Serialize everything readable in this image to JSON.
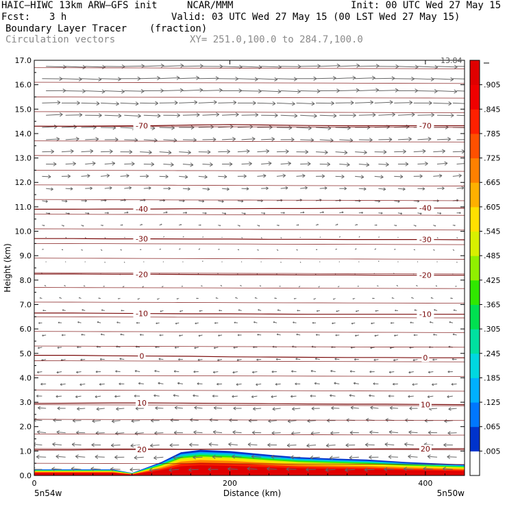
{
  "header": {
    "model": "HAIC–HIWC 13km ARW–GFS init",
    "org": "NCAR/MMM",
    "init": "Init: 00 UTC Wed 27 May 15",
    "fcst_label": "Fcst:",
    "fcst_value": "3 h",
    "valid": "Valid: 03 UTC Wed 27 May 15 (00 LST Wed 27 May 15)",
    "field": "Boundary Layer Tracer",
    "field_units": "(fraction)",
    "vectors": "Circulation vectors",
    "xy": "XY= 251.0,100.0 to 284.7,100.0"
  },
  "chart_data": {
    "type": "heatmap",
    "title": "Boundary Layer Tracer",
    "units": "(fraction)",
    "xlabel": "Distance (km)",
    "ylabel": "Height (km)",
    "xlim": [
      0,
      440
    ],
    "ylim": [
      0,
      17
    ],
    "x_ticks": [
      0,
      200,
      400
    ],
    "y_ticks": [
      "0.0",
      "1.0",
      "2.0",
      "3.0",
      "4.0",
      "5.0",
      "6.0",
      "7.0",
      "8.0",
      "9.0",
      "10.0",
      "11.0",
      "12.0",
      "13.0",
      "14.0",
      "15.0",
      "16.0",
      "17.0"
    ],
    "left_endpoint": "5n54w",
    "right_endpoint": "5n50w",
    "vector_max_label": "13.84",
    "colorbar": {
      "labels": [
        ".005",
        ".065",
        ".125",
        ".185",
        ".245",
        ".305",
        ".365",
        ".425",
        ".485",
        ".545",
        ".605",
        ".665",
        ".725",
        ".785",
        ".845",
        ".905"
      ],
      "colors": [
        "#ffffff",
        "#0033cc",
        "#0077ff",
        "#00b0ff",
        "#00d8e0",
        "#00e0a0",
        "#00e050",
        "#30e800",
        "#90f000",
        "#d8f000",
        "#ffe000",
        "#ffb000",
        "#ff8000",
        "#ff5000",
        "#ff2000",
        "#f00000",
        "#e00000"
      ]
    },
    "contours": [
      {
        "label": "20",
        "heights": [
          1.05,
          1.05,
          1.06,
          1.07,
          1.07,
          1.08,
          1.08,
          1.08,
          1.08,
          1.09,
          1.09,
          1.1
        ]
      },
      {
        "label": "10",
        "heights": [
          2.95,
          2.96,
          2.97,
          2.97,
          2.96,
          2.95,
          2.94,
          2.93,
          2.92,
          2.92,
          2.91,
          2.9
        ]
      },
      {
        "label": "0",
        "heights": [
          4.92,
          4.92,
          4.9,
          4.89,
          4.88,
          4.86,
          4.85,
          4.84,
          4.83,
          4.83,
          4.82,
          4.82
        ]
      },
      {
        "label": "-10",
        "heights": [
          6.65,
          6.65,
          6.64,
          6.63,
          6.62,
          6.62,
          6.61,
          6.6,
          6.6,
          6.6,
          6.6,
          6.6
        ]
      },
      {
        "label": "-20",
        "heights": [
          8.25,
          8.25,
          8.24,
          8.24,
          8.23,
          8.22,
          8.22,
          8.21,
          8.21,
          8.2,
          8.2,
          8.2
        ]
      },
      {
        "label": "-30",
        "heights": [
          9.7,
          9.7,
          9.69,
          9.69,
          9.68,
          9.68,
          9.67,
          9.67,
          9.66,
          9.66,
          9.66,
          9.65
        ]
      },
      {
        "label": "-40",
        "heights": [
          10.9,
          10.9,
          10.91,
          10.91,
          10.92,
          10.92,
          10.93,
          10.93,
          10.94,
          10.94,
          10.95,
          10.95
        ]
      },
      {
        "label": "-70",
        "heights": [
          14.3,
          14.3,
          14.31,
          14.32,
          14.35,
          14.37,
          14.35,
          14.33,
          14.32,
          14.32,
          14.32,
          14.32
        ]
      }
    ],
    "tracer_layer": {
      "x_km": [
        0,
        80,
        100,
        130,
        150,
        170,
        200,
        240,
        270,
        300,
        340,
        380,
        410,
        440
      ],
      "top_km": [
        0.25,
        0.25,
        0.1,
        0.55,
        0.95,
        1.05,
        1.0,
        0.85,
        0.75,
        0.7,
        0.65,
        0.55,
        0.5,
        0.45
      ]
    }
  }
}
